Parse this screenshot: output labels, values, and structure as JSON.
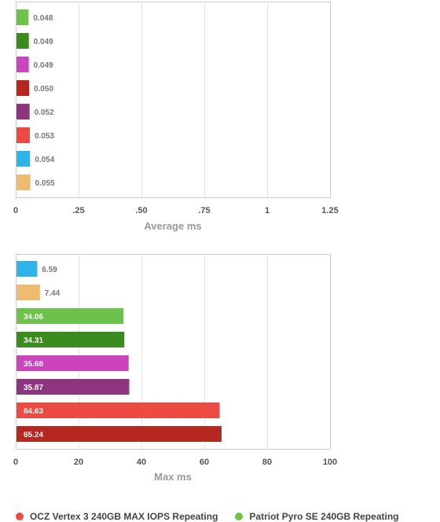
{
  "chart_data": [
    {
      "type": "bar",
      "orientation": "horizontal",
      "xlabel": "Average ms",
      "xlim": [
        0,
        1.25
      ],
      "ticks": [
        "0",
        ".25",
        ".50",
        ".75",
        "1",
        "1.25"
      ],
      "grid": true,
      "bars": [
        {
          "label": "0.048",
          "value": 0.048,
          "color": "#6cc24a"
        },
        {
          "label": "0.049",
          "value": 0.049,
          "color": "#3a8c1f"
        },
        {
          "label": "0.049",
          "value": 0.049,
          "color": "#cc44bb"
        },
        {
          "label": "0.050",
          "value": 0.05,
          "color": "#b5271f"
        },
        {
          "label": "0.052",
          "value": 0.052,
          "color": "#8e3580"
        },
        {
          "label": "0.053",
          "value": 0.053,
          "color": "#ee4a44"
        },
        {
          "label": "0.054",
          "value": 0.054,
          "color": "#2eb3ea"
        },
        {
          "label": "0.055",
          "value": 0.055,
          "color": "#efbb72"
        }
      ]
    },
    {
      "type": "bar",
      "orientation": "horizontal",
      "xlabel": "Max ms",
      "xlim": [
        0,
        100
      ],
      "ticks": [
        "0",
        "20",
        "40",
        "60",
        "80",
        "100"
      ],
      "grid": true,
      "bars": [
        {
          "label": "6.59",
          "value": 6.59,
          "color": "#2eb3ea"
        },
        {
          "label": "7.44",
          "value": 7.44,
          "color": "#efbb72"
        },
        {
          "label": "34.06",
          "value": 34.06,
          "color": "#6cc24a"
        },
        {
          "label": "34.31",
          "value": 34.31,
          "color": "#3a8c1f"
        },
        {
          "label": "35.68",
          "value": 35.68,
          "color": "#cc44bb"
        },
        {
          "label": "35.87",
          "value": 35.87,
          "color": "#8e3580"
        },
        {
          "label": "64.63",
          "value": 64.63,
          "color": "#ee4a44"
        },
        {
          "label": "65.24",
          "value": 65.24,
          "color": "#b5271f"
        }
      ]
    }
  ],
  "legend": [
    {
      "label": "OCZ Vertex 3 240GB MAX IOPS Repeating",
      "color": "#ee4a44"
    },
    {
      "label": "Patriot Pyro SE 240GB Repeating",
      "color": "#6cc24a"
    }
  ]
}
